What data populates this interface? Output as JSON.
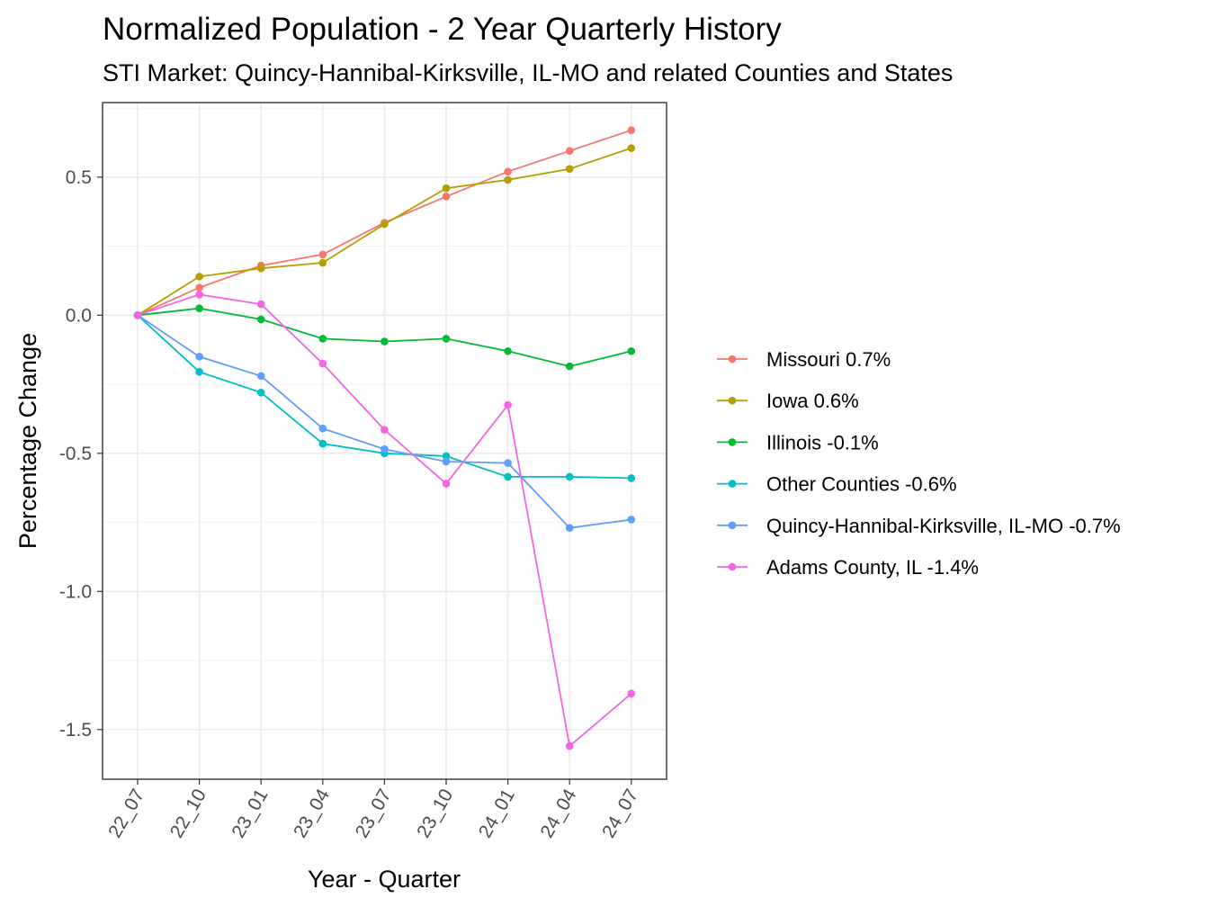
{
  "chart_data": {
    "type": "line",
    "title": "Normalized Population - 2 Year Quarterly History",
    "subtitle": "STI Market: Quincy-Hannibal-Kirksville, IL-MO and related Counties and States",
    "xlabel": "Year - Quarter",
    "ylabel": "Percentage Change",
    "categories": [
      "22_07",
      "22_10",
      "23_01",
      "23_04",
      "23_07",
      "23_10",
      "24_01",
      "24_04",
      "24_07"
    ],
    "ylim": [
      -1.68,
      0.77
    ],
    "yticks": [
      {
        "value": 0.5,
        "label": "0.5"
      },
      {
        "value": 0.0,
        "label": "0.0"
      },
      {
        "value": -0.5,
        "label": "-0.5"
      },
      {
        "value": -1.0,
        "label": "-1.0"
      },
      {
        "value": -1.5,
        "label": "-1.5"
      }
    ],
    "grid": true,
    "legend_position": "right",
    "series": [
      {
        "name": "Missouri 0.7%",
        "color": "#F8766D",
        "values": [
          0.0,
          0.1,
          0.18,
          0.22,
          0.335,
          0.43,
          0.52,
          0.595,
          0.67
        ]
      },
      {
        "name": "Iowa 0.6%",
        "color": "#B79F00",
        "values": [
          0.0,
          0.14,
          0.17,
          0.19,
          0.33,
          0.46,
          0.49,
          0.53,
          0.605
        ]
      },
      {
        "name": "Illinois -0.1%",
        "color": "#00BA38",
        "values": [
          0.0,
          0.025,
          -0.015,
          -0.085,
          -0.095,
          -0.085,
          -0.13,
          -0.185,
          -0.13
        ]
      },
      {
        "name": "Other Counties -0.6%",
        "color": "#00BFC4",
        "values": [
          0.0,
          -0.205,
          -0.28,
          -0.465,
          -0.5,
          -0.51,
          -0.585,
          -0.585,
          -0.59
        ]
      },
      {
        "name": "Quincy-Hannibal-Kirksville, IL-MO -0.7%",
        "color": "#619CFF",
        "values": [
          0.0,
          -0.15,
          -0.22,
          -0.41,
          -0.485,
          -0.53,
          -0.535,
          -0.77,
          -0.74
        ]
      },
      {
        "name": "Adams County, IL -1.4%",
        "color": "#F564E3",
        "values": [
          0.0,
          0.075,
          0.04,
          -0.175,
          -0.415,
          -0.61,
          -0.325,
          -1.56,
          -1.37
        ]
      }
    ]
  }
}
